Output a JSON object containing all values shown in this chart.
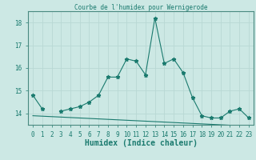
{
  "title": "Courbe de l'humidex pour Wernigerode",
  "xlabel": "Humidex (Indice chaleur)",
  "x": [
    0,
    1,
    2,
    3,
    4,
    5,
    6,
    7,
    8,
    9,
    10,
    11,
    12,
    13,
    14,
    15,
    16,
    17,
    18,
    19,
    20,
    21,
    22,
    23
  ],
  "y_humidex": [
    14.8,
    14.2,
    null,
    14.1,
    14.2,
    14.3,
    14.5,
    14.8,
    15.6,
    15.6,
    16.4,
    16.3,
    15.7,
    18.2,
    16.2,
    16.4,
    15.8,
    14.7,
    13.9,
    13.8,
    13.8,
    14.1,
    14.2,
    13.8
  ],
  "y_ref": [
    13.9,
    13.88,
    13.86,
    13.84,
    13.82,
    13.8,
    13.78,
    13.76,
    13.74,
    13.72,
    13.7,
    13.68,
    13.66,
    13.64,
    13.62,
    13.6,
    13.58,
    13.56,
    13.54,
    13.52,
    13.5,
    13.48,
    13.46,
    13.44
  ],
  "line_color": "#1a7a6e",
  "bg_color": "#cce8e4",
  "grid_color": "#b8d8d4",
  "ylim": [
    13.5,
    18.5
  ],
  "yticks": [
    14,
    15,
    16,
    17,
    18
  ],
  "figsize": [
    3.2,
    2.0
  ],
  "dpi": 100
}
